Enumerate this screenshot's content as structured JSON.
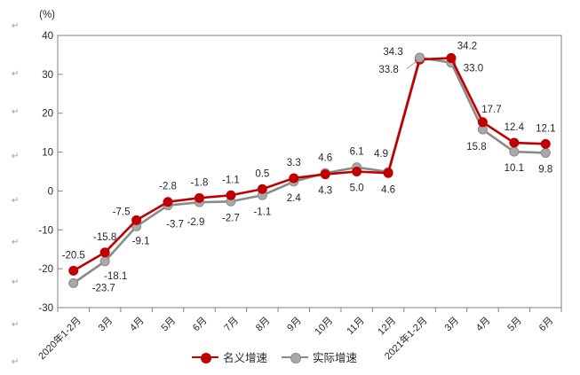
{
  "chart_data": {
    "type": "line",
    "title": "",
    "unit_label": "(%)",
    "categories": [
      "2020年1-2月",
      "3月",
      "4月",
      "5月",
      "6月",
      "7月",
      "8月",
      "9月",
      "10月",
      "11月",
      "12月",
      "2021年1-2月",
      "3月",
      "4月",
      "5月",
      "6月"
    ],
    "series": [
      {
        "name": "名义增速",
        "color": "#c00000",
        "marker_fill": "#c00000",
        "marker": "circle",
        "values": [
          -20.5,
          -15.8,
          -7.5,
          -2.8,
          -1.8,
          -1.1,
          0.5,
          3.3,
          4.3,
          5.0,
          4.6,
          33.8,
          34.2,
          17.7,
          12.4,
          12.1
        ]
      },
      {
        "name": "实际增速",
        "color": "#8a8a8a",
        "marker_fill": "#a9a9a9",
        "marker": "circle",
        "values": [
          -23.7,
          -18.1,
          -9.1,
          -3.7,
          -2.9,
          -2.7,
          -1.1,
          2.4,
          4.6,
          6.1,
          4.9,
          34.3,
          33.0,
          15.8,
          10.1,
          9.8
        ]
      }
    ],
    "xlabel": "",
    "ylabel": "",
    "ylim": [
      -30,
      40
    ],
    "ytick_step": 10,
    "yticks": [
      40,
      30,
      20,
      10,
      0,
      -10,
      -20,
      -30
    ],
    "grid": false,
    "data_labels": true,
    "legend_position": "bottom",
    "axis_color": "#808080",
    "text_color": "#262626"
  },
  "decorations": {
    "return_mark": "↵"
  }
}
